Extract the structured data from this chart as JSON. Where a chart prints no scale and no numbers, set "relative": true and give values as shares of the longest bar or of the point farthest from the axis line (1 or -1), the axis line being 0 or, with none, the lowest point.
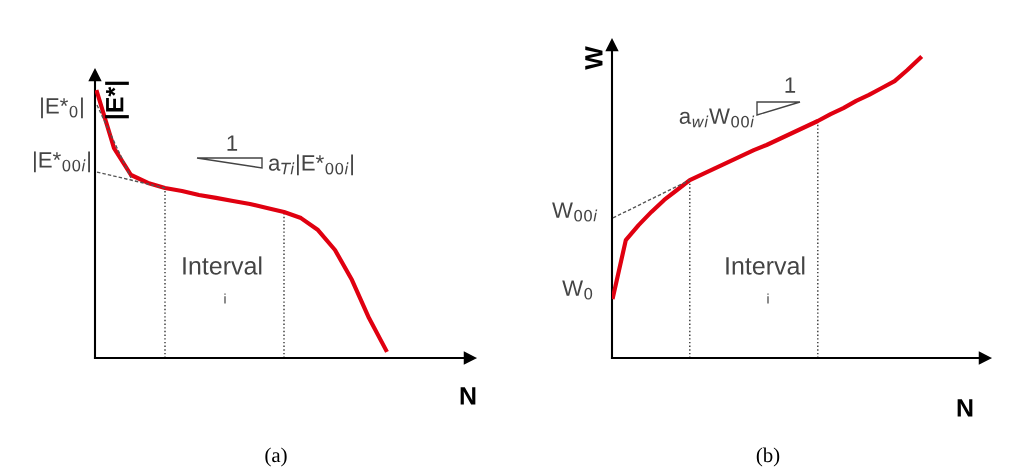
{
  "chart_data": [
    {
      "type": "line",
      "title": "(a)",
      "xlabel": "N",
      "ylabel": "|E*|",
      "relative": true,
      "marker": "none",
      "categories": [
        null,
        null,
        null,
        null,
        null,
        null,
        null,
        null,
        null,
        null,
        null,
        null,
        null,
        null,
        null,
        null,
        null,
        null
      ],
      "series": [
        {
          "color": "#e00010",
          "line_style": "solid",
          "values": [
            1.0,
            0.789,
            0.688,
            0.658,
            0.639,
            0.628,
            0.613,
            0.602,
            0.59,
            0.579,
            0.564,
            0.549,
            0.526,
            0.481,
            0.406,
            0.293,
            0.15,
            0.03
          ]
        },
        {
          "color": "#555555",
          "line_style": "dashed",
          "values": [
            0.951,
            0.814,
            0.677,
            null,
            null,
            null,
            null,
            null,
            null,
            null,
            null,
            null,
            null,
            null,
            null,
            null,
            null,
            null
          ]
        },
        {
          "color": "#555555",
          "line_style": "dashed",
          "values": [
            0.699,
            0.684,
            0.669,
            0.654,
            0.639,
            null,
            null,
            null,
            null,
            null,
            null,
            null,
            null,
            null,
            null,
            null,
            null,
            null
          ]
        }
      ],
      "annotations": [
        "|E*$_{0}$|",
        "|E*$_{00i}$|",
        "1",
        "a$_{Ti}$|E*$_{00i}$|",
        "Interval",
        "i"
      ]
    },
    {
      "type": "line",
      "title": "(b)",
      "xlabel": "N",
      "ylabel": "W",
      "relative": true,
      "marker": "none",
      "categories": [
        null,
        null,
        null,
        null,
        null,
        null,
        null,
        null,
        null,
        null,
        null,
        null,
        null,
        null,
        null,
        null,
        null,
        null,
        null,
        null,
        null,
        null,
        null,
        null,
        null
      ],
      "series": [
        {
          "color": "#e00010",
          "line_style": "solid",
          "values": [
            0.203,
            0.393,
            0.443,
            0.487,
            0.527,
            0.56,
            0.593,
            0.613,
            0.633,
            0.653,
            0.673,
            0.693,
            0.71,
            0.73,
            0.75,
            0.77,
            0.79,
            0.813,
            0.833,
            0.857,
            0.877,
            0.9,
            0.923,
            0.96,
            1.0
          ]
        },
        {
          "color": "#555555",
          "line_style": "dashed",
          "values": [
            0.467,
            0.488,
            0.509,
            0.53,
            0.551,
            0.572,
            0.593,
            null,
            null,
            null,
            null,
            null,
            null,
            null,
            null,
            null,
            null,
            null,
            null,
            null,
            null,
            null,
            null,
            null,
            null
          ]
        }
      ],
      "annotations": [
        "W$_{00i}$",
        "W$_{0}$",
        "1",
        "a$_{wi}$W$_{00i}$",
        "Interval",
        "i"
      ]
    }
  ]
}
